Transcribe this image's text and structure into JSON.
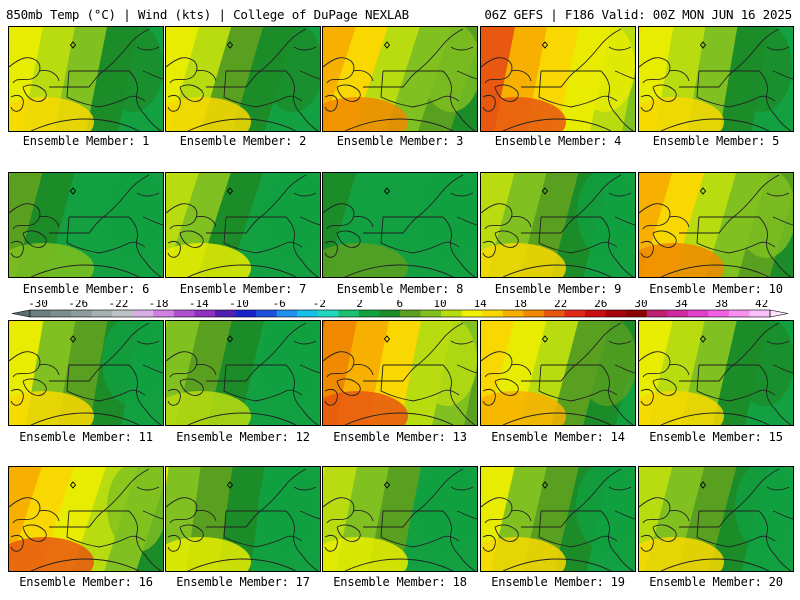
{
  "header": {
    "left": "850mb Temp (°C) | Wind (kts) | College of DuPage NEXLAB",
    "right": "06Z GEFS | F186 Valid: 00Z MON JUN 16 2025"
  },
  "colorbar": {
    "ticks": [
      "-30",
      "-26",
      "-22",
      "-18",
      "-14",
      "-10",
      "-6",
      "-2",
      "2",
      "6",
      "10",
      "14",
      "18",
      "22",
      "26",
      "30",
      "34",
      "38",
      "42"
    ],
    "colors": [
      "#6a7f80",
      "#7c8d8e",
      "#8f9c9d",
      "#a4b0b0",
      "#bcc3c6",
      "#d9b0e6",
      "#cf80e0",
      "#b050d0",
      "#9030c0",
      "#5020b0",
      "#1a24cc",
      "#1e50e0",
      "#1e90f0",
      "#18c0e8",
      "#20d8c0",
      "#1cc070",
      "#12a040",
      "#1c8c28",
      "#5aa020",
      "#80c020",
      "#b8dc10",
      "#f0f000",
      "#f8d800",
      "#f8b000",
      "#f08800",
      "#e85810",
      "#e02818",
      "#c80e10",
      "#a8000c",
      "#8c0000",
      "#c02070",
      "#d028a0",
      "#e040c8",
      "#f060e0",
      "#f890f0",
      "#fbc0fb"
    ]
  },
  "panels": [
    {
      "label": "Ensemble Member: 1",
      "warm": 0.55,
      "tilt": 0.6
    },
    {
      "label": "Ensemble Member: 2",
      "warm": 0.52,
      "tilt": 0.3
    },
    {
      "label": "Ensemble Member: 3",
      "warm": 0.72,
      "tilt": 0.2
    },
    {
      "label": "Ensemble Member: 4",
      "warm": 0.9,
      "tilt": 0.6
    },
    {
      "label": "Ensemble Member: 5",
      "warm": 0.55,
      "tilt": 0.7
    },
    {
      "label": "Ensemble Member: 6",
      "warm": 0.25,
      "tilt": 0.4
    },
    {
      "label": "Ensemble Member: 7",
      "warm": 0.42,
      "tilt": 0.2
    },
    {
      "label": "Ensemble Member: 8",
      "warm": 0.12,
      "tilt": 0.3
    },
    {
      "label": "Ensemble Member: 9",
      "warm": 0.48,
      "tilt": 0.4
    },
    {
      "label": "Ensemble Member: 10",
      "warm": 0.72,
      "tilt": 0.3
    },
    {
      "label": "Ensemble Member: 11",
      "warm": 0.5,
      "tilt": 0.7
    },
    {
      "label": "Ensemble Member: 12",
      "warm": 0.35,
      "tilt": 0.5
    },
    {
      "label": "Ensemble Member: 13",
      "warm": 0.85,
      "tilt": 0.6
    },
    {
      "label": "Ensemble Member: 14",
      "warm": 0.65,
      "tilt": 0.4
    },
    {
      "label": "Ensemble Member: 15",
      "warm": 0.55,
      "tilt": 0.5
    },
    {
      "label": "Ensemble Member: 16",
      "warm": 0.78,
      "tilt": 0.2
    },
    {
      "label": "Ensemble Member: 17",
      "warm": 0.38,
      "tilt": 0.8
    },
    {
      "label": "Ensemble Member: 18",
      "warm": 0.45,
      "tilt": 0.6
    },
    {
      "label": "Ensemble Member: 19",
      "warm": 0.5,
      "tilt": 0.5
    },
    {
      "label": "Ensemble Member: 20",
      "warm": 0.48,
      "tilt": 0.4
    }
  ]
}
